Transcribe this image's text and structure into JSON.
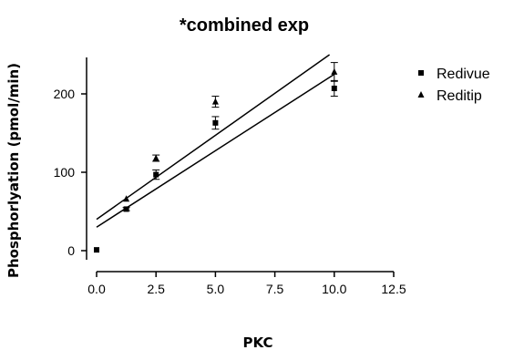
{
  "chart_data": {
    "type": "scatter",
    "title": "*combined exp",
    "xlabel": "PKC",
    "ylabel": "Phosphorlyation (pmol/min)",
    "xlim": [
      -1.5,
      12.5
    ],
    "ylim": [
      -25,
      260
    ],
    "xticks": [
      "0.0",
      "2.5",
      "5.0",
      "7.5",
      "10.0",
      "12.5"
    ],
    "yticks": [
      "0",
      "100",
      "200"
    ],
    "grid": false,
    "legend_position": "right",
    "series": [
      {
        "name": "Redivue",
        "marker": "square",
        "color": "#000000",
        "points": [
          {
            "x": 0,
            "y": 1,
            "err": 0
          },
          {
            "x": 1.25,
            "y": 53,
            "err": 2
          },
          {
            "x": 2.5,
            "y": 97,
            "err": 6
          },
          {
            "x": 5,
            "y": 163,
            "err": 8
          },
          {
            "x": 10,
            "y": 207,
            "err": 10
          }
        ],
        "fit": {
          "x": [
            0,
            10
          ],
          "y": [
            30,
            225
          ]
        }
      },
      {
        "name": "Reditip",
        "marker": "triangle",
        "color": "#000000",
        "points": [
          {
            "x": 1.25,
            "y": 66,
            "err": 0
          },
          {
            "x": 2.5,
            "y": 118,
            "err": 4
          },
          {
            "x": 5,
            "y": 190,
            "err": 7
          },
          {
            "x": 10,
            "y": 228,
            "err": 12
          }
        ],
        "fit": {
          "x": [
            0,
            9.8
          ],
          "y": [
            40,
            250
          ]
        }
      }
    ]
  }
}
